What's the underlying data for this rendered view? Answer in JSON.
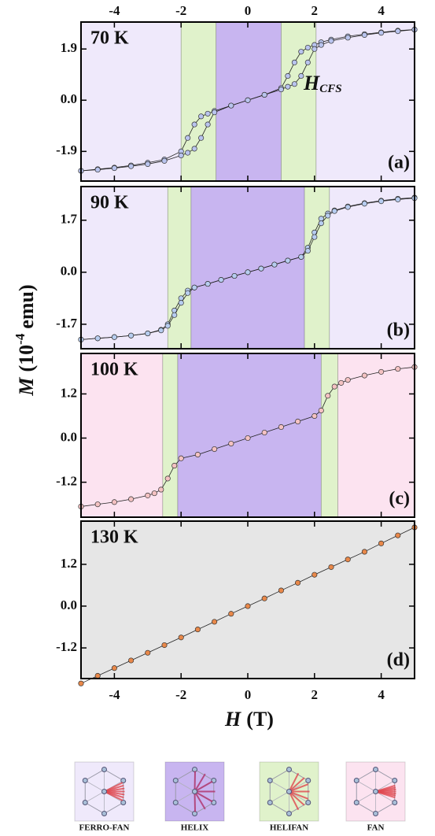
{
  "chart_data": [
    {
      "type": "line",
      "label": "70 K",
      "panel_label": "(a)",
      "annotation": {
        "text": "H",
        "subscript": "CFS"
      },
      "xlim": [
        -5,
        5
      ],
      "xticks": [
        -4,
        -2,
        0,
        2,
        4
      ],
      "xtick_labels": "top",
      "ylim": [
        -3,
        2.9
      ],
      "yticks": [
        -1.9,
        {
          "value": 0,
          "label": "0.0"
        },
        1.9
      ],
      "regions": [
        {
          "x0": -5,
          "x1": -2,
          "color": "#efe9fb"
        },
        {
          "x0": -2,
          "x1": -0.95,
          "color": "#e0f2cb"
        },
        {
          "x0": -0.95,
          "x1": 1,
          "color": "#c8b5f0"
        },
        {
          "x0": 1,
          "x1": 2.05,
          "color": "#e0f2cb"
        },
        {
          "x0": 2.05,
          "x1": 5,
          "color": "#efe9fb"
        }
      ],
      "series": [
        {
          "color": "#b9c4ee",
          "x": [
            5,
            4.5,
            4,
            3.5,
            3,
            2.5,
            2.2,
            2,
            1.8,
            1.6,
            1.4,
            1.2,
            1,
            0.5,
            0,
            -0.5,
            -1,
            -1.2,
            -1.4,
            -1.6,
            -1.8,
            -2,
            -2.5,
            -3,
            -3.5,
            -4,
            -4.5,
            -5
          ],
          "values": [
            2.62,
            2.58,
            2.52,
            2.45,
            2.37,
            2.25,
            2.15,
            2.05,
            1.95,
            1.8,
            1.4,
            0.9,
            0.45,
            0.2,
            0,
            -0.2,
            -0.4,
            -0.5,
            -0.6,
            -0.9,
            -1.4,
            -1.9,
            -2.2,
            -2.32,
            -2.42,
            -2.5,
            -2.56,
            -2.62
          ]
        },
        {
          "color": "#b9c4ee",
          "x": [
            5,
            4.5,
            4,
            3.5,
            3,
            2.5,
            2.2,
            2,
            1.8,
            1.6,
            1.4,
            1.2,
            1,
            0.5,
            0,
            -0.5,
            -1,
            -1.2,
            -1.4,
            -1.6,
            -1.8,
            -2,
            -2.5,
            -3,
            -3.5,
            -4,
            -4.5,
            -5
          ],
          "values": [
            2.62,
            2.56,
            2.5,
            2.42,
            2.32,
            2.2,
            2.05,
            1.9,
            1.4,
            0.9,
            0.6,
            0.5,
            0.4,
            0.2,
            0,
            -0.2,
            -0.45,
            -0.9,
            -1.4,
            -1.8,
            -1.95,
            -2.05,
            -2.25,
            -2.37,
            -2.45,
            -2.52,
            -2.58,
            -2.62
          ]
        }
      ]
    },
    {
      "type": "line",
      "label": "90 K",
      "panel_label": "(b)",
      "xlim": [
        -5,
        5
      ],
      "xticks": [
        -4,
        -2,
        0,
        2,
        4
      ],
      "ylim": [
        -2.5,
        2.8
      ],
      "yticks": [
        -1.7,
        {
          "value": 0,
          "label": "0.0"
        },
        1.7
      ],
      "regions": [
        {
          "x0": -5,
          "x1": -2.4,
          "color": "#efe9fb"
        },
        {
          "x0": -2.4,
          "x1": -1.7,
          "color": "#e0f2cb"
        },
        {
          "x0": -1.7,
          "x1": 1.7,
          "color": "#c8b5f0"
        },
        {
          "x0": 1.7,
          "x1": 2.45,
          "color": "#e0f2cb"
        },
        {
          "x0": 2.45,
          "x1": 5,
          "color": "#efe9fb"
        }
      ],
      "series": [
        {
          "color": "#b7cdf0",
          "x": [
            5,
            4.5,
            4,
            3.5,
            3,
            2.6,
            2.4,
            2.2,
            2,
            1.8,
            1.6,
            1.2,
            0.8,
            0.4,
            0,
            -0.4,
            -0.8,
            -1.2,
            -1.6,
            -1.8,
            -2,
            -2.2,
            -2.4,
            -2.6,
            -3,
            -3.5,
            -4,
            -4.5,
            -5
          ],
          "values": [
            2.44,
            2.4,
            2.34,
            2.26,
            2.15,
            2.02,
            1.92,
            1.75,
            1.3,
            0.8,
            0.5,
            0.38,
            0.25,
            0.12,
            0,
            -0.12,
            -0.25,
            -0.38,
            -0.5,
            -0.6,
            -0.85,
            -1.25,
            -1.7,
            -1.88,
            -2,
            -2.07,
            -2.12,
            -2.16,
            -2.2
          ]
        },
        {
          "color": "#b7cdf0",
          "x": [
            5,
            4.5,
            4,
            3.5,
            3,
            2.6,
            2.4,
            2.2,
            2,
            1.8,
            1.6,
            1.2,
            0.8,
            0.4,
            0,
            -0.4,
            -0.8,
            -1.2,
            -1.6,
            -1.8,
            -2,
            -2.2,
            -2.4,
            -2.6,
            -3,
            -3.5,
            -4,
            -4.5,
            -5
          ],
          "values": [
            2.42,
            2.38,
            2.32,
            2.24,
            2.13,
            2,
            1.85,
            1.6,
            1.15,
            0.7,
            0.5,
            0.38,
            0.25,
            0.12,
            0,
            -0.12,
            -0.25,
            -0.38,
            -0.5,
            -0.68,
            -1,
            -1.4,
            -1.75,
            -1.9,
            -2,
            -2.07,
            -2.12,
            -2.16,
            -2.2
          ]
        }
      ]
    },
    {
      "type": "line",
      "label": "100 K",
      "panel_label": "(c)",
      "xlim": [
        -5,
        5
      ],
      "xticks": [
        -4,
        -2,
        0,
        2,
        4
      ],
      "ylim": [
        -2.15,
        2.3
      ],
      "yticks": [
        -1.2,
        {
          "value": 0,
          "label": "0.0"
        },
        1.2
      ],
      "regions": [
        {
          "x0": -5,
          "x1": -2.55,
          "color": "#fce3f0"
        },
        {
          "x0": -2.55,
          "x1": -2.1,
          "color": "#e0f2cb"
        },
        {
          "x0": -2.1,
          "x1": 2.2,
          "color": "#c8b5f0"
        },
        {
          "x0": 2.2,
          "x1": 2.7,
          "color": "#e0f2cb"
        },
        {
          "x0": 2.7,
          "x1": 5,
          "color": "#fce3f0"
        }
      ],
      "series": [
        {
          "color": "#f4c2c2",
          "x": [
            5,
            4.5,
            4,
            3.5,
            3,
            2.8,
            2.6,
            2.4,
            2.2,
            2,
            1.5,
            1,
            0.5,
            0,
            -0.5,
            -1,
            -1.5,
            -2,
            -2.2,
            -2.4,
            -2.6,
            -2.8,
            -3,
            -3.5,
            -4,
            -4.5,
            -5
          ],
          "values": [
            1.93,
            1.88,
            1.8,
            1.7,
            1.58,
            1.5,
            1.4,
            1.15,
            0.75,
            0.6,
            0.45,
            0.3,
            0.15,
            0,
            -0.15,
            -0.3,
            -0.45,
            -0.55,
            -0.75,
            -1.1,
            -1.4,
            -1.5,
            -1.56,
            -1.66,
            -1.74,
            -1.8,
            -1.86
          ]
        }
      ]
    },
    {
      "type": "line",
      "label": "130 K",
      "panel_label": "(d)",
      "background": "#e6e6e6",
      "xlim": [
        -5,
        5
      ],
      "xticks": [
        -4,
        -2,
        0,
        2,
        4
      ],
      "xtick_labels": "bottom",
      "ylim": [
        -2.08,
        2.44
      ],
      "yticks": [
        -1.2,
        {
          "value": 0,
          "label": "0.0"
        },
        1.2
      ],
      "series": [
        {
          "color": "#e8884a",
          "x": [
            -5,
            -4.5,
            -4,
            -3.5,
            -3,
            -2.5,
            -2,
            -1.5,
            -1,
            -0.5,
            0,
            0.5,
            1,
            1.5,
            2,
            2.5,
            3,
            3.5,
            4,
            4.5,
            5
          ],
          "values": [
            -2.22,
            -2,
            -1.78,
            -1.56,
            -1.34,
            -1.12,
            -0.9,
            -0.67,
            -0.45,
            -0.22,
            0,
            0.22,
            0.45,
            0.67,
            0.9,
            1.12,
            1.34,
            1.56,
            1.8,
            2.03,
            2.26
          ]
        }
      ]
    }
  ],
  "xlabel": {
    "symbol": "H",
    "unit": "(T)"
  },
  "ylabel": {
    "symbol": "M",
    "text": "(10",
    "exponent": "-4",
    "unit": "emu)"
  },
  "phases": [
    {
      "name": "FERRO-FAN",
      "color": "#efe9fb"
    },
    {
      "name": "HELIX",
      "color": "#c8b5f0"
    },
    {
      "name": "HELIFAN",
      "color": "#e0f2cb"
    },
    {
      "name": "FAN",
      "color": "#fce3f0"
    }
  ]
}
